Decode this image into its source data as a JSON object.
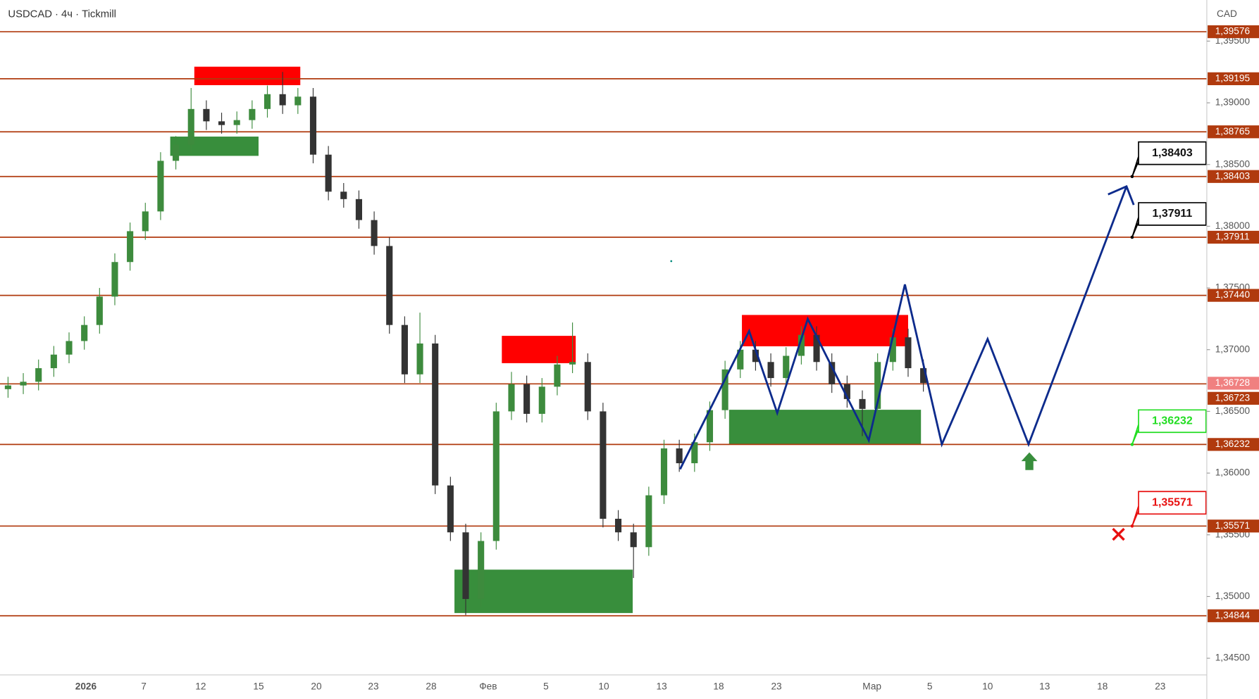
{
  "chart_data": {
    "type": "candlestick",
    "title": "USDCAD · 4ч · Tickmill",
    "currency": "CAD",
    "ylim": [
      1.34365,
      1.39833
    ],
    "yticks": [
      {
        "value": 1.345,
        "label": "1,34500"
      },
      {
        "value": 1.35,
        "label": "1,35000"
      },
      {
        "value": 1.355,
        "label": "1,35500"
      },
      {
        "value": 1.36,
        "label": "1,36000"
      },
      {
        "value": 1.365,
        "label": "1,36500"
      },
      {
        "value": 1.37,
        "label": "1,37000"
      },
      {
        "value": 1.375,
        "label": "1,37500"
      },
      {
        "value": 1.38,
        "label": "1,38000"
      },
      {
        "value": 1.385,
        "label": "1,38500"
      },
      {
        "value": 1.39,
        "label": "1,39000"
      },
      {
        "value": 1.395,
        "label": "1,39500"
      }
    ],
    "categories": [
      "2026",
      "7",
      "12",
      "15",
      "20",
      "23",
      "28",
      "Фев",
      "5",
      "10",
      "13",
      "18",
      "23",
      "Мар",
      "5",
      "10",
      "13",
      "18",
      "23"
    ],
    "up_color": "#3d8b3d",
    "down_color": "#333333",
    "open": [
      1.3668,
      1.3671,
      1.3674,
      1.3685,
      1.3696,
      1.3707,
      1.372,
      1.3743,
      1.3771,
      1.3796,
      1.3812,
      1.3853,
      1.3866,
      1.3895,
      1.3885,
      1.3882,
      1.3886,
      1.3895,
      1.3907,
      1.3898,
      1.3905,
      1.3858,
      1.3828,
      1.3822,
      1.3805,
      1.3784,
      1.372,
      1.368,
      1.3705,
      1.359,
      1.3552,
      1.3498,
      1.3545,
      1.365,
      1.3672,
      1.3648,
      1.367,
      1.3688,
      1.369,
      1.365,
      1.3563,
      1.3552,
      1.354,
      1.3582,
      1.362,
      1.3608,
      1.3625,
      1.3651,
      1.3684,
      1.37,
      1.369,
      1.3677,
      1.3695,
      1.3712,
      1.369,
      1.3672,
      1.366,
      1.3652,
      1.369,
      1.371,
      1.3685
    ],
    "high": [
      1.3678,
      1.3681,
      1.3692,
      1.3703,
      1.3714,
      1.3727,
      1.375,
      1.3778,
      1.3803,
      1.3819,
      1.386,
      1.3873,
      1.3912,
      1.3902,
      1.3892,
      1.3893,
      1.3902,
      1.3914,
      1.3925,
      1.3912,
      1.3912,
      1.3865,
      1.3835,
      1.3829,
      1.3812,
      1.3791,
      1.3727,
      1.373,
      1.3712,
      1.3597,
      1.3559,
      1.3552,
      1.3657,
      1.3682,
      1.3679,
      1.3677,
      1.3695,
      1.3722,
      1.3697,
      1.3657,
      1.357,
      1.3559,
      1.3589,
      1.3627,
      1.3627,
      1.3632,
      1.3658,
      1.3691,
      1.3707,
      1.3707,
      1.3697,
      1.3702,
      1.3719,
      1.3719,
      1.3697,
      1.3679,
      1.3667,
      1.3697,
      1.3717,
      1.3717,
      1.3692
    ],
    "low": [
      1.3661,
      1.3664,
      1.3667,
      1.3678,
      1.3689,
      1.37,
      1.3713,
      1.3736,
      1.3764,
      1.3789,
      1.3805,
      1.3846,
      1.3859,
      1.3878,
      1.3875,
      1.3875,
      1.3879,
      1.3888,
      1.3891,
      1.3891,
      1.3851,
      1.3821,
      1.3815,
      1.3798,
      1.3777,
      1.3713,
      1.3673,
      1.3673,
      1.3583,
      1.3545,
      1.3485,
      1.3491,
      1.3538,
      1.3643,
      1.3641,
      1.3641,
      1.3663,
      1.3681,
      1.3643,
      1.3556,
      1.3545,
      1.3515,
      1.3533,
      1.3575,
      1.3601,
      1.3601,
      1.3618,
      1.3644,
      1.3677,
      1.3683,
      1.367,
      1.367,
      1.3688,
      1.3683,
      1.3665,
      1.3653,
      1.363,
      1.3645,
      1.3683,
      1.3678,
      1.3666
    ],
    "close": [
      1.3671,
      1.3674,
      1.3685,
      1.3696,
      1.3707,
      1.372,
      1.3743,
      1.3771,
      1.3796,
      1.3812,
      1.3853,
      1.3866,
      1.3895,
      1.3885,
      1.3882,
      1.3886,
      1.3895,
      1.3907,
      1.3898,
      1.3905,
      1.3858,
      1.3828,
      1.3822,
      1.3805,
      1.3784,
      1.372,
      1.368,
      1.3705,
      1.359,
      1.3552,
      1.3498,
      1.3545,
      1.365,
      1.3672,
      1.3648,
      1.367,
      1.3688,
      1.369,
      1.365,
      1.3563,
      1.3552,
      1.354,
      1.3582,
      1.362,
      1.3608,
      1.3625,
      1.3651,
      1.3684,
      1.37,
      1.369,
      1.3677,
      1.3695,
      1.3712,
      1.369,
      1.3672,
      1.366,
      1.3652,
      1.369,
      1.371,
      1.3685,
      1.3673
    ],
    "level_color": "#b03a0e",
    "levels": [
      {
        "value": 1.39576,
        "label": "1,39576"
      },
      {
        "value": 1.39195,
        "label": "1,39195"
      },
      {
        "value": 1.38765,
        "label": "1,38765"
      },
      {
        "value": 1.38403,
        "label": "1,38403"
      },
      {
        "value": 1.37911,
        "label": "1,37911"
      },
      {
        "value": 1.3744,
        "label": "1,37440"
      },
      {
        "value": 1.36723,
        "label": "1,36723"
      },
      {
        "value": 1.36232,
        "label": "1,36232"
      },
      {
        "value": 1.35571,
        "label": "1,35571"
      },
      {
        "value": 1.34844,
        "label": "1,34844"
      }
    ],
    "current_price": {
      "value": 1.36728,
      "label": "1,36728",
      "color": "#f08080"
    },
    "callouts": [
      {
        "value": 1.38403,
        "label": "1,38403",
        "color": "#000000"
      },
      {
        "value": 1.37911,
        "label": "1,37911",
        "color": "#000000"
      },
      {
        "value": 1.36232,
        "label": "1,36232",
        "color": "#22dd22"
      },
      {
        "value": 1.35571,
        "label": "1,35571",
        "color": "#e81010"
      }
    ]
  }
}
